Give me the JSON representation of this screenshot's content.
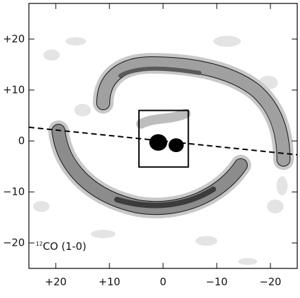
{
  "chart_data": {
    "type": "contour_map",
    "annotation": {
      "superscript": "12",
      "text": "CO (1-0)"
    },
    "xlim": [
      25,
      -25
    ],
    "ylim": [
      -25,
      27
    ],
    "xticks": [
      {
        "value": 20,
        "label": "+20"
      },
      {
        "value": 10,
        "label": "+10"
      },
      0,
      {
        "value": -10,
        "label": "−10"
      },
      {
        "value": -20,
        "label": "−20"
      }
    ],
    "yticks": [
      {
        "value": 20,
        "label": "+20"
      },
      {
        "value": 10,
        "label": "+10"
      },
      0,
      {
        "value": -10,
        "label": "−10"
      },
      {
        "value": -20,
        "label": "−20"
      }
    ],
    "box": {
      "x": [
        4.5,
        -4.7
      ],
      "y": [
        -5.1,
        6
      ]
    },
    "dashed_line": {
      "x": [
        25,
        -25
      ],
      "y": [
        2.7,
        -2.7
      ]
    }
  }
}
